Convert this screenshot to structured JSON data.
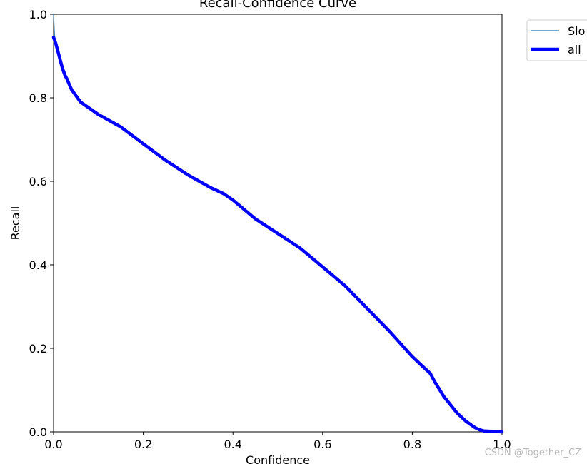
{
  "chart_data": {
    "type": "line",
    "title": "Recall-Confidence Curve",
    "xlabel": "Confidence",
    "ylabel": "Recall",
    "xlim": [
      0.0,
      1.0
    ],
    "ylim": [
      0.0,
      1.0
    ],
    "xticks": [
      0.0,
      0.2,
      0.4,
      0.6,
      0.8,
      1.0
    ],
    "yticks": [
      0.0,
      0.2,
      0.4,
      0.6,
      0.8,
      1.0
    ],
    "xtick_labels": [
      "0.0",
      "0.2",
      "0.4",
      "0.6",
      "0.8",
      "1.0"
    ],
    "ytick_labels": [
      "0.0",
      "0.2",
      "0.4",
      "0.6",
      "0.8",
      "1.0"
    ],
    "grid": false,
    "legend_position": "outside-top-right",
    "series": [
      {
        "name": "Slo",
        "color": "#1f77b4",
        "x": [
          0.0,
          0.002,
          0.005,
          0.01,
          0.015,
          0.02,
          0.025,
          0.03,
          0.04,
          0.05,
          0.06,
          0.08,
          0.1,
          0.15,
          0.2,
          0.25,
          0.3,
          0.35,
          0.38,
          0.4,
          0.45,
          0.5,
          0.55,
          0.6,
          0.65,
          0.7,
          0.75,
          0.8,
          0.83,
          0.84,
          0.85,
          0.87,
          0.9,
          0.92,
          0.94,
          0.95,
          0.96,
          0.98,
          1.0
        ],
        "y": [
          1.0,
          0.95,
          0.93,
          0.9,
          0.88,
          0.87,
          0.865,
          0.845,
          0.82,
          0.805,
          0.79,
          0.775,
          0.76,
          0.73,
          0.69,
          0.65,
          0.615,
          0.585,
          0.57,
          0.555,
          0.51,
          0.475,
          0.44,
          0.395,
          0.35,
          0.295,
          0.24,
          0.18,
          0.15,
          0.14,
          0.12,
          0.085,
          0.045,
          0.025,
          0.01,
          0.005,
          0.002,
          0.001,
          0.0
        ]
      },
      {
        "name": "all",
        "color": "#0000ff",
        "x": [
          0.0,
          0.005,
          0.01,
          0.015,
          0.02,
          0.025,
          0.03,
          0.04,
          0.05,
          0.06,
          0.08,
          0.1,
          0.15,
          0.2,
          0.25,
          0.3,
          0.35,
          0.38,
          0.4,
          0.45,
          0.5,
          0.55,
          0.6,
          0.65,
          0.7,
          0.75,
          0.8,
          0.83,
          0.84,
          0.85,
          0.87,
          0.9,
          0.92,
          0.94,
          0.95,
          0.96,
          0.98,
          1.0
        ],
        "y": [
          0.945,
          0.93,
          0.91,
          0.89,
          0.87,
          0.855,
          0.845,
          0.82,
          0.805,
          0.79,
          0.775,
          0.76,
          0.73,
          0.69,
          0.65,
          0.615,
          0.585,
          0.57,
          0.555,
          0.51,
          0.475,
          0.44,
          0.395,
          0.35,
          0.295,
          0.24,
          0.18,
          0.15,
          0.14,
          0.12,
          0.085,
          0.045,
          0.025,
          0.01,
          0.005,
          0.002,
          0.001,
          0.0
        ]
      }
    ]
  },
  "watermark": "CSDN @Together_CZ"
}
